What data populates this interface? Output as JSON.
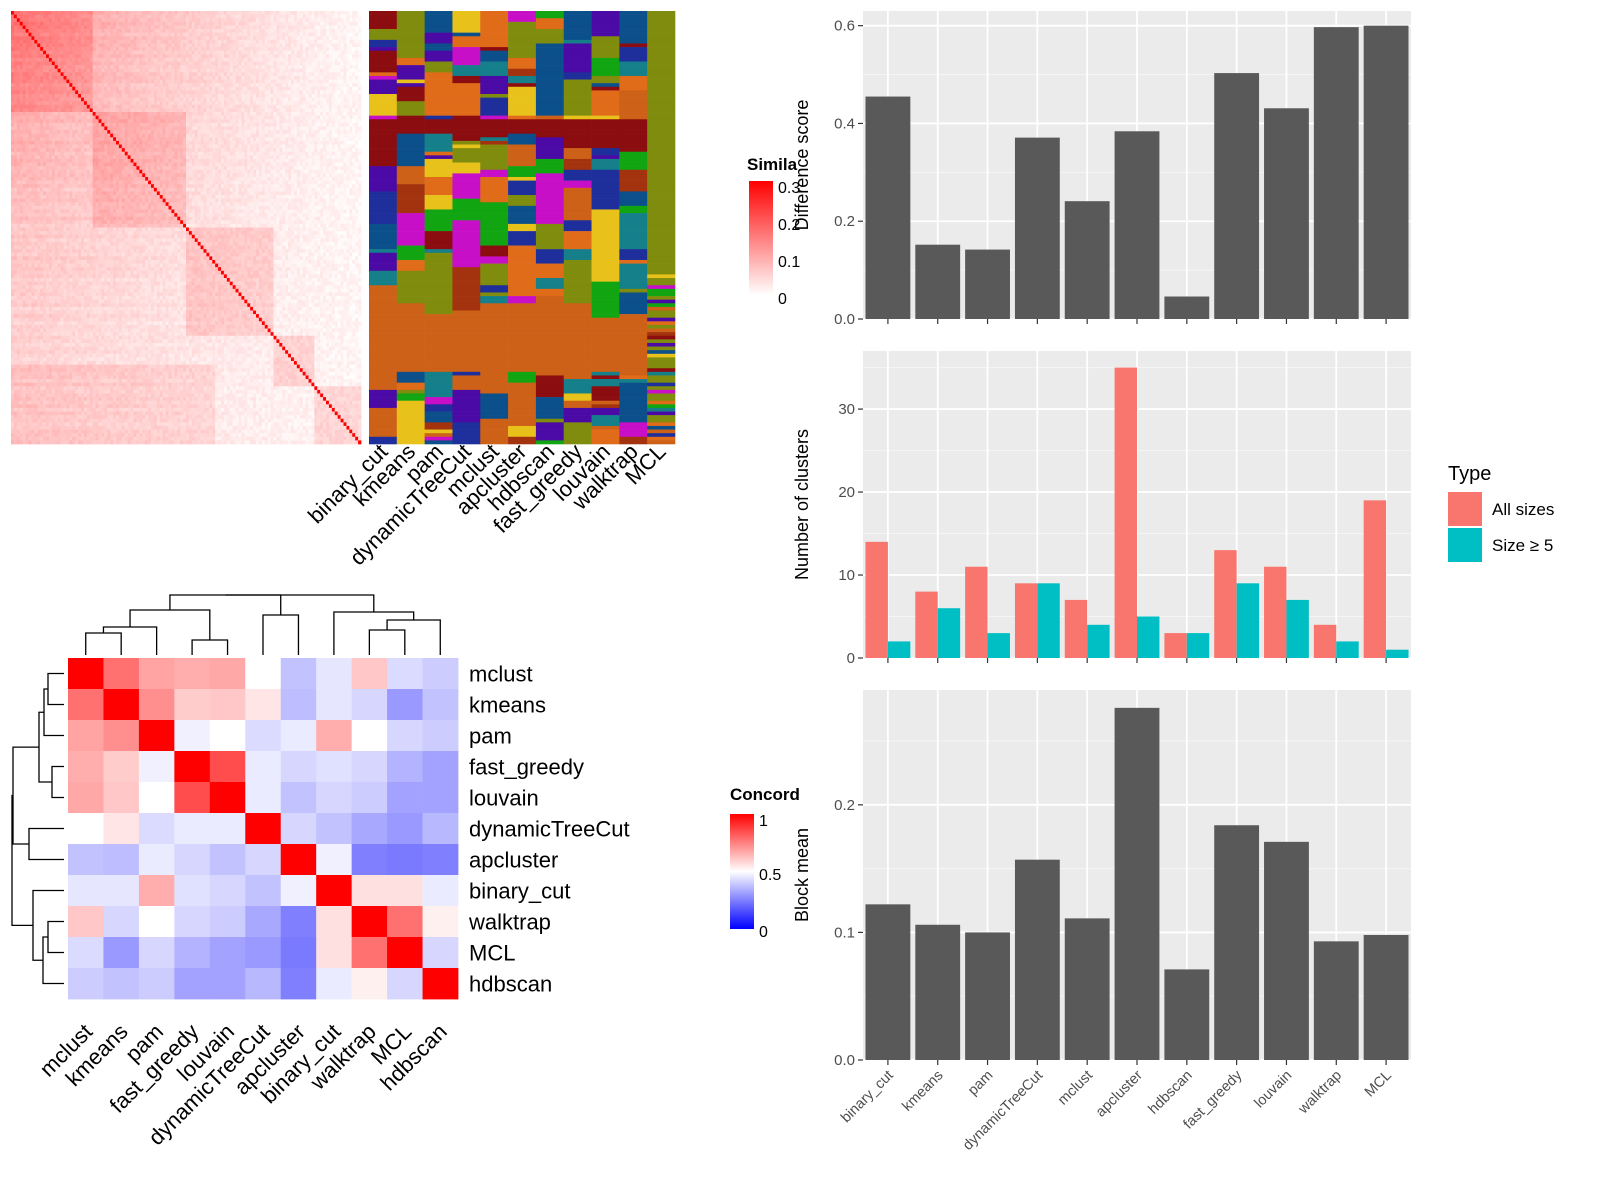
{
  "methods_heatmap_order": [
    "binary_cut",
    "kmeans",
    "pam",
    "dynamicTreeCut",
    "mclust",
    "apcluster",
    "hdbscan",
    "fast_greedy",
    "louvain",
    "walktrap",
    "MCL"
  ],
  "similarity_legend": {
    "title": "Simila",
    "ticks": [
      "0.3",
      "0.2",
      "0.1",
      "0"
    ],
    "colors": [
      "#ff0000",
      "#ffffff"
    ]
  },
  "concordance_legend": {
    "title": "Concord",
    "ticks": [
      "1",
      "0.5",
      "0"
    ],
    "colors": [
      "#ff0000",
      "#ffffff",
      "#0000ff"
    ]
  },
  "chart_data": [
    {
      "type": "heatmap",
      "panel": "term similarity heatmap",
      "rows_count": 120,
      "value_range": [
        0,
        0.3
      ],
      "colors": {
        "low": "#ffffff",
        "high": "#ff0000"
      }
    },
    {
      "type": "heatmap",
      "panel": "cluster assignment per method",
      "columns": [
        "binary_cut",
        "kmeans",
        "pam",
        "dynamicTreeCut",
        "mclust",
        "apcluster",
        "hdbscan",
        "fast_greedy",
        "louvain",
        "walktrap",
        "MCL"
      ],
      "palette": [
        "#7f8c0d",
        "#cd6118",
        "#8b0d10",
        "#a3330e",
        "#e06c1a",
        "#4b0aa5",
        "#0b4f8b",
        "#12a512",
        "#c80fc8",
        "#e8c21a",
        "#157f8a",
        "#1e2f9b"
      ]
    },
    {
      "type": "heatmap",
      "panel": "concordance between methods",
      "rows": [
        "mclust",
        "kmeans",
        "pam",
        "fast_greedy",
        "louvain",
        "dynamicTreeCut",
        "apcluster",
        "binary_cut",
        "walktrap",
        "MCL",
        "hdbscan"
      ],
      "columns": [
        "mclust",
        "kmeans",
        "pam",
        "fast_greedy",
        "louvain",
        "dynamicTreeCut",
        "apcluster",
        "binary_cut",
        "walktrap",
        "MCL",
        "hdbscan"
      ],
      "values": [
        [
          1.0,
          0.78,
          0.68,
          0.66,
          0.67,
          0.5,
          0.38,
          0.45,
          0.61,
          0.43,
          0.4
        ],
        [
          0.78,
          1.0,
          0.72,
          0.6,
          0.61,
          0.55,
          0.37,
          0.45,
          0.42,
          0.3,
          0.38
        ],
        [
          0.68,
          0.72,
          1.0,
          0.47,
          0.5,
          0.43,
          0.46,
          0.66,
          0.5,
          0.42,
          0.4
        ],
        [
          0.66,
          0.6,
          0.47,
          1.0,
          0.85,
          0.46,
          0.42,
          0.44,
          0.42,
          0.35,
          0.32
        ],
        [
          0.67,
          0.61,
          0.5,
          0.85,
          1.0,
          0.46,
          0.38,
          0.42,
          0.4,
          0.32,
          0.32
        ],
        [
          0.5,
          0.55,
          0.43,
          0.46,
          0.46,
          1.0,
          0.42,
          0.38,
          0.33,
          0.3,
          0.36
        ],
        [
          0.38,
          0.37,
          0.46,
          0.42,
          0.38,
          0.42,
          1.0,
          0.47,
          0.25,
          0.24,
          0.25
        ],
        [
          0.45,
          0.45,
          0.66,
          0.44,
          0.42,
          0.38,
          0.47,
          1.0,
          0.56,
          0.56,
          0.46
        ],
        [
          0.61,
          0.42,
          0.5,
          0.42,
          0.4,
          0.33,
          0.25,
          0.56,
          1.0,
          0.78,
          0.53
        ],
        [
          0.43,
          0.3,
          0.42,
          0.35,
          0.32,
          0.3,
          0.24,
          0.56,
          0.78,
          1.0,
          0.42
        ],
        [
          0.4,
          0.38,
          0.4,
          0.32,
          0.32,
          0.36,
          0.25,
          0.46,
          0.53,
          0.42,
          1.0
        ]
      ],
      "value_range": [
        0,
        1
      ]
    },
    {
      "type": "bar",
      "categories": [
        "binary_cut",
        "kmeans",
        "pam",
        "dynamicTreeCut",
        "mclust",
        "apcluster",
        "hdbscan",
        "fast_greedy",
        "louvain",
        "walktrap",
        "MCL"
      ],
      "values": [
        0.455,
        0.152,
        0.142,
        0.371,
        0.241,
        0.384,
        0.046,
        0.503,
        0.431,
        0.597,
        0.6
      ],
      "ylabel": "Difference score",
      "ylim": [
        0,
        0.63
      ],
      "yticks": [
        "0.0",
        "0.2",
        "0.4",
        "0.6"
      ],
      "color": "#595959",
      "grid": true
    },
    {
      "type": "bar",
      "categories": [
        "binary_cut",
        "kmeans",
        "pam",
        "dynamicTreeCut",
        "mclust",
        "apcluster",
        "hdbscan",
        "fast_greedy",
        "louvain",
        "walktrap",
        "MCL"
      ],
      "series": [
        {
          "name": "All sizes",
          "values": [
            14,
            8,
            11,
            9,
            7,
            35,
            3,
            13,
            11,
            4,
            19
          ],
          "color": "#f8766d"
        },
        {
          "name": "Size ≥ 5",
          "values": [
            2,
            6,
            3,
            9,
            4,
            5,
            3,
            9,
            7,
            2,
            1
          ],
          "color": "#00bfc4"
        }
      ],
      "ylabel": "Number of clusters",
      "ylim": [
        0,
        37
      ],
      "yticks": [
        "0",
        "10",
        "20",
        "30"
      ],
      "legend": {
        "title": "Type",
        "position": "right"
      },
      "grid": true
    },
    {
      "type": "bar",
      "categories": [
        "binary_cut",
        "kmeans",
        "pam",
        "dynamicTreeCut",
        "mclust",
        "apcluster",
        "hdbscan",
        "fast_greedy",
        "louvain",
        "walktrap",
        "MCL"
      ],
      "values": [
        0.122,
        0.106,
        0.1,
        0.157,
        0.111,
        0.276,
        0.071,
        0.184,
        0.171,
        0.093,
        0.098
      ],
      "ylabel": "Block mean",
      "ylim": [
        0,
        0.29
      ],
      "yticks": [
        "0.0",
        "0.1",
        "0.2"
      ],
      "color": "#595959",
      "grid": true
    }
  ]
}
